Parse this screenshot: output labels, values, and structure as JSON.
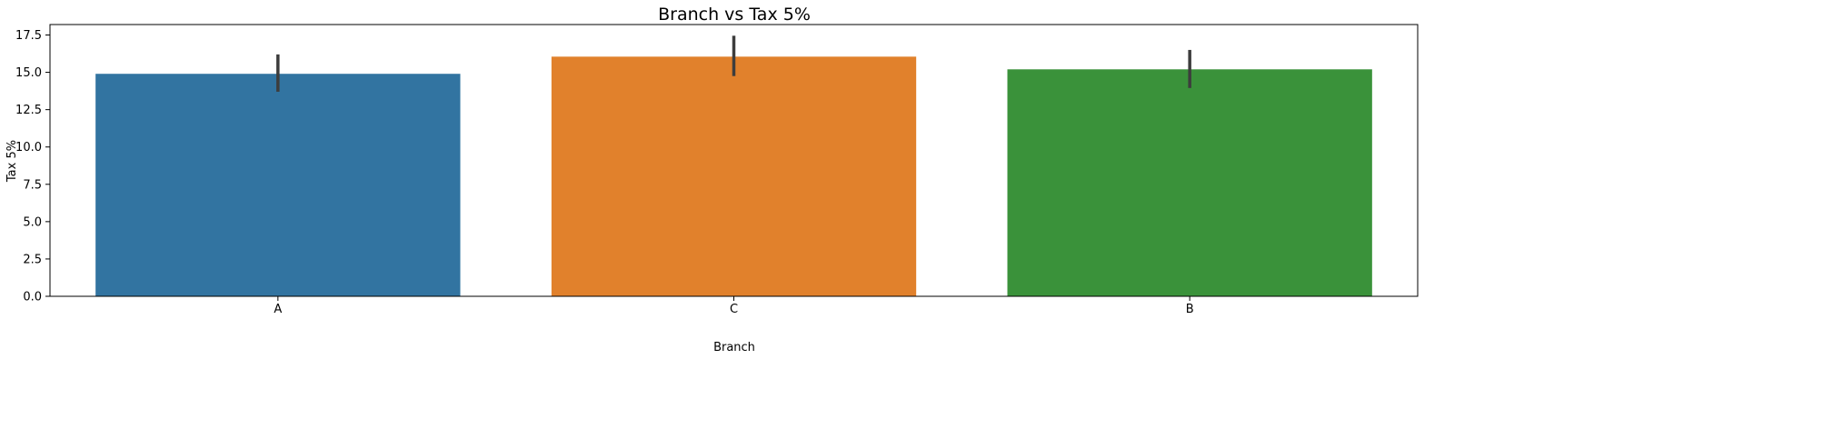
{
  "chart_data": {
    "type": "bar",
    "title": "Branch vs Tax 5%",
    "xlabel": "Branch",
    "ylabel": "Tax 5%",
    "categories": [
      "A",
      "C",
      "B"
    ],
    "values": [
      14.9,
      16.05,
      15.2
    ],
    "error_low": [
      13.7,
      14.75,
      13.95
    ],
    "error_high": [
      16.2,
      17.45,
      16.5
    ],
    "colors": [
      "#3274a1",
      "#e1812c",
      "#3a923a"
    ],
    "error_color": "#3d3d3d",
    "ylim": [
      0,
      18.2
    ],
    "yticks": [
      0.0,
      2.5,
      5.0,
      7.5,
      10.0,
      12.5,
      15.0,
      17.5
    ],
    "ytick_labels": [
      "0.0",
      "2.5",
      "5.0",
      "7.5",
      "10.0",
      "12.5",
      "15.0",
      "17.5"
    ],
    "grid": false,
    "legend": "none"
  }
}
